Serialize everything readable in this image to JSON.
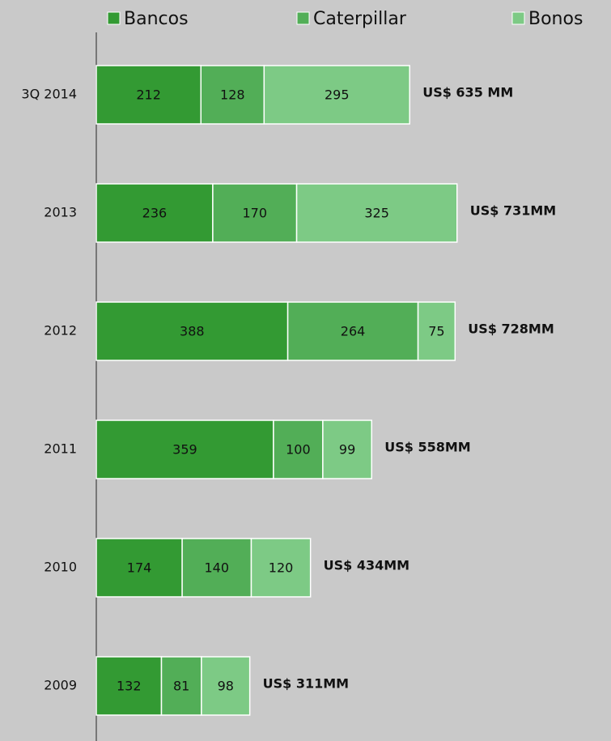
{
  "chart_data": {
    "type": "stacked-barh",
    "categories": [
      "3Q 2014",
      "2013",
      "2012",
      "2011",
      "2010",
      "2009"
    ],
    "series": [
      {
        "name": "Bancos",
        "color": "#339a33",
        "values": [
          212,
          236,
          388,
          359,
          174,
          132
        ]
      },
      {
        "name": "Caterpillar",
        "color": "#52ae57",
        "values": [
          128,
          170,
          264,
          100,
          140,
          81
        ]
      },
      {
        "name": "Bonos",
        "color": "#7dca85",
        "values": [
          295,
          325,
          75,
          99,
          120,
          98
        ]
      }
    ],
    "annotations": [
      "US$ 635 MM",
      "US$ 731MM",
      "US$ 728MM",
      "US$ 558MM",
      "US$ 434MM",
      "US$ 311MM"
    ],
    "xlim": [
      0,
      1043
    ],
    "legend": "top"
  }
}
